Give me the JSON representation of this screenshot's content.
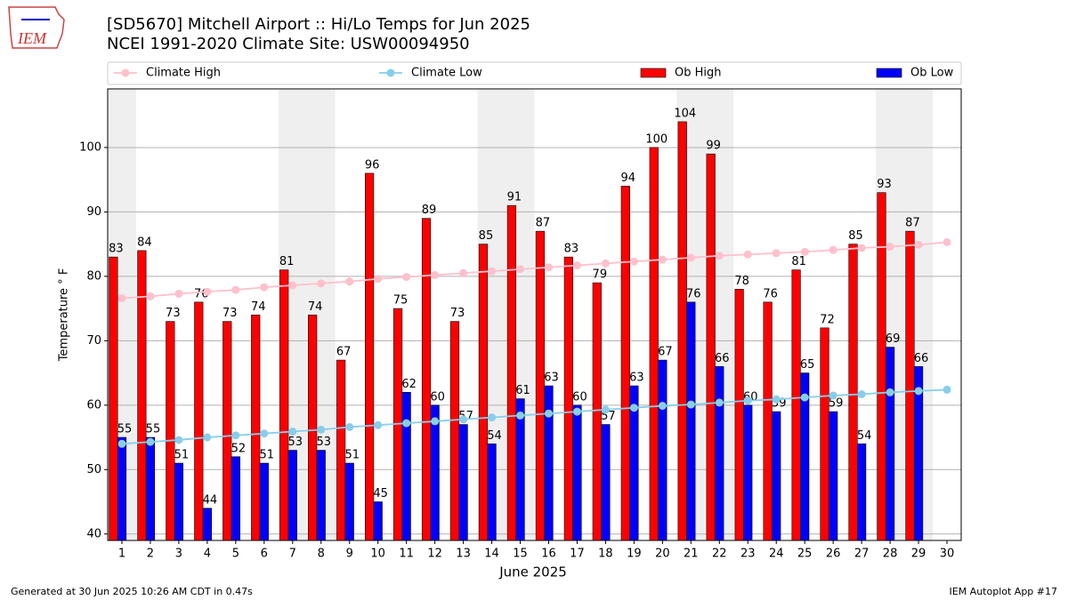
{
  "logo_text": "IEM",
  "footer_left": "Generated at 30 Jun 2025 10:26 AM CDT in 0.47s",
  "footer_right": "IEM Autoplot App #17",
  "chart_data": {
    "type": "bar_line",
    "title": "[SD5670] Mitchell Airport :: Hi/Lo Temps for Jun 2025",
    "subtitle": "NCEI 1991-2020 Climate Site: USW00094950",
    "xlabel": "June 2025",
    "ylabel": "Temperature ° F",
    "x": [
      1,
      2,
      3,
      4,
      5,
      6,
      7,
      8,
      9,
      10,
      11,
      12,
      13,
      14,
      15,
      16,
      17,
      18,
      19,
      20,
      21,
      22,
      23,
      24,
      25,
      26,
      27,
      28,
      29,
      30
    ],
    "xlim": [
      0.5,
      30.5
    ],
    "ylim": [
      39,
      109.1
    ],
    "yticks": [
      40,
      50,
      60,
      70,
      80,
      90,
      100
    ],
    "grid": true,
    "shaded_days": [
      1,
      7,
      8,
      14,
      15,
      21,
      22,
      28,
      29
    ],
    "series": [
      {
        "name": "Climate High",
        "kind": "line",
        "color": "#ffc0cb",
        "values": [
          76.6,
          76.9,
          77.3,
          77.6,
          77.9,
          78.3,
          78.6,
          78.9,
          79.2,
          79.6,
          79.9,
          80.2,
          80.5,
          80.8,
          81.1,
          81.4,
          81.7,
          82.0,
          82.3,
          82.6,
          82.9,
          83.2,
          83.4,
          83.6,
          83.8,
          84.1,
          84.4,
          84.6,
          84.9,
          85.3
        ]
      },
      {
        "name": "Climate Low",
        "kind": "line",
        "color": "#87ceeb",
        "values": [
          54.0,
          54.3,
          54.6,
          55.0,
          55.3,
          55.6,
          55.9,
          56.2,
          56.6,
          56.9,
          57.2,
          57.5,
          57.8,
          58.1,
          58.4,
          58.7,
          59.0,
          59.3,
          59.6,
          59.9,
          60.1,
          60.4,
          60.7,
          60.9,
          61.2,
          61.5,
          61.7,
          62.0,
          62.2,
          62.4
        ]
      },
      {
        "name": "Ob High",
        "kind": "bar",
        "color": "#ff0000",
        "values": [
          83,
          84,
          73,
          76,
          73,
          74,
          81,
          74,
          67,
          96,
          75,
          89,
          73,
          85,
          91,
          87,
          83,
          79,
          94,
          100,
          104,
          99,
          78,
          76,
          81,
          72,
          85,
          93,
          87,
          null
        ]
      },
      {
        "name": "Ob Low",
        "kind": "bar",
        "color": "#0000ff",
        "values": [
          55,
          55,
          51,
          44,
          52,
          51,
          53,
          53,
          51,
          45,
          62,
          60,
          57,
          54,
          61,
          63,
          60,
          57,
          63,
          67,
          76,
          66,
          60,
          59,
          65,
          59,
          54,
          69,
          66,
          null
        ]
      }
    ]
  }
}
